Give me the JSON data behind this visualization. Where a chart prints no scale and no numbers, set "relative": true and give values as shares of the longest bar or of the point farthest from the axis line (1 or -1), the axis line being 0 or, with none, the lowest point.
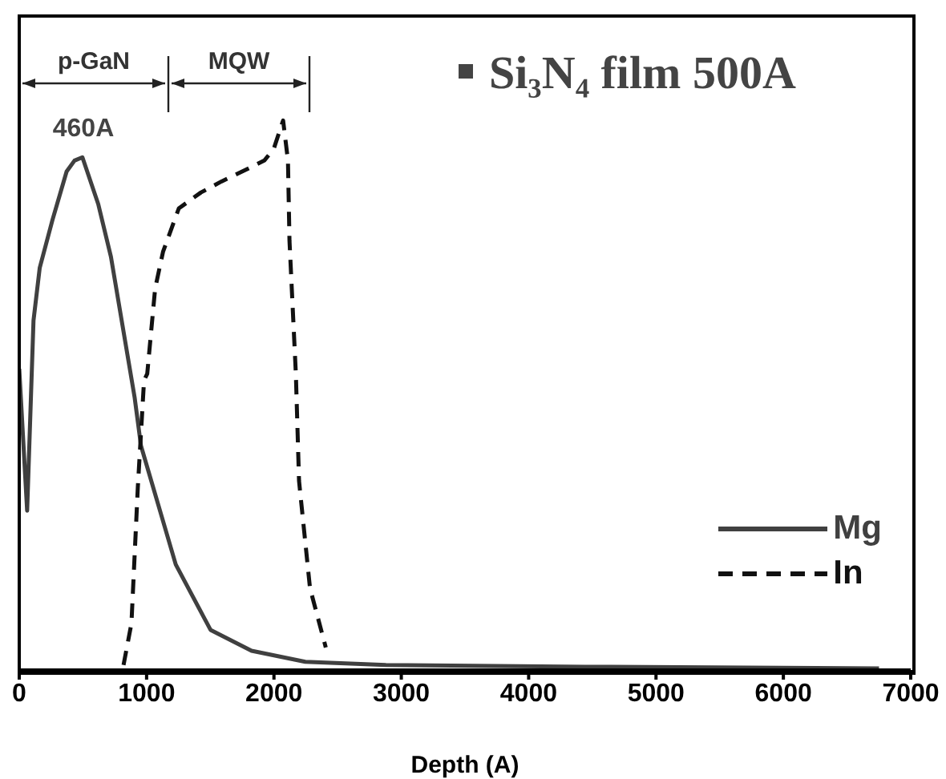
{
  "chart_data": {
    "type": "line",
    "relative": true,
    "xlabel": "Depth (A)",
    "xlim": [
      0,
      7000
    ],
    "xticks": [
      0,
      1000,
      2000,
      3000,
      4000,
      5000,
      6000,
      7000
    ],
    "legend": "bottom right",
    "series": [
      {
        "name": "Mg",
        "color": "#404040",
        "line_style": "solid",
        "x": [
          0,
          62,
          112,
          161,
          261,
          372,
          434,
          496,
          620,
          720,
          906,
          956,
          1229,
          1502,
          1824,
          2246,
          2879,
          4443,
          6751
        ],
        "values": [
          0.548,
          0.29,
          0.636,
          0.732,
          0.819,
          0.907,
          0.927,
          0.933,
          0.848,
          0.752,
          0.496,
          0.408,
          0.192,
          0.073,
          0.035,
          0.015,
          0.009,
          0.006,
          0.003
        ]
      },
      {
        "name": "In",
        "color": "#111111",
        "line_style": "dashed",
        "x": [
          819,
          881,
          931,
          980,
          1005,
          1067,
          1129,
          1253,
          1427,
          1588,
          1750,
          1924,
          1998,
          2072,
          2110,
          2122,
          2172,
          2197,
          2283,
          2407
        ],
        "values": [
          0.009,
          0.085,
          0.332,
          0.527,
          0.539,
          0.694,
          0.761,
          0.84,
          0.869,
          0.889,
          0.907,
          0.927,
          0.948,
          1,
          0.927,
          0.781,
          0.539,
          0.344,
          0.149,
          0.041
        ]
      }
    ],
    "annotations": [
      "p-GaN",
      "MQW",
      "460A",
      "Si₃N₄ film 500A"
    ]
  }
}
